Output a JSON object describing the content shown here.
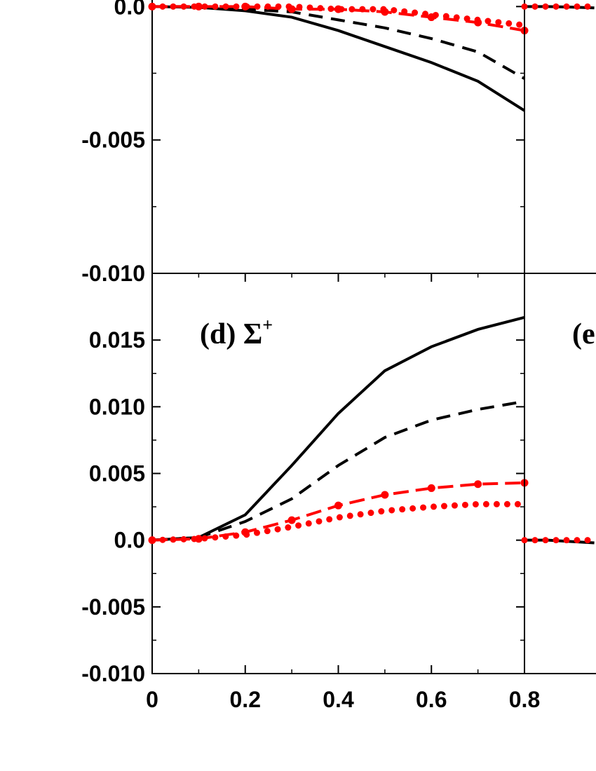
{
  "chart_data": [
    {
      "type": "line",
      "x": [
        0,
        0.1,
        0.2,
        0.3,
        0.4,
        0.5,
        0.6,
        0.7,
        0.8
      ],
      "xlim": [
        0,
        0.8
      ],
      "ylim": [
        -0.01,
        0.005
      ],
      "yticks": [
        {
          "value": -0.01,
          "label": "-0.010"
        },
        {
          "value": -0.005,
          "label": "-0.005"
        },
        {
          "value": 0,
          "label": "0.0"
        }
      ],
      "series": [
        {
          "color": "#000000",
          "style": "solid",
          "values": [
            0,
            -3e-05,
            -0.00016,
            -0.0004,
            -0.0009,
            -0.0015,
            -0.0021,
            -0.0028,
            -0.0039
          ]
        },
        {
          "color": "#000000",
          "style": "dashed",
          "values": [
            0,
            0,
            -0.0001,
            -0.0002,
            -0.0005,
            -0.0008,
            -0.0012,
            -0.0017,
            -0.0027
          ]
        },
        {
          "color": "#ff0000",
          "style": "dash-dot-circles",
          "values": [
            0,
            0,
            0,
            -0.0001,
            -0.0001,
            -0.0002,
            -0.0004,
            -0.0006,
            -0.0009
          ]
        },
        {
          "color": "#ff0000",
          "style": "dotted-circles",
          "values": [
            0,
            0,
            0,
            0,
            -0.0001,
            -0.0001,
            -0.0003,
            -0.0005,
            -0.0007
          ]
        }
      ]
    },
    {
      "type": "line",
      "x": [
        0,
        0.05,
        0.1,
        0.15
      ],
      "xlim": [
        0,
        0.8
      ],
      "ylim": [
        -0.01,
        0.005
      ],
      "series": [
        {
          "color": "#000000",
          "style": "solid",
          "values": [
            0,
            0,
            -2e-05,
            -5e-05
          ]
        },
        {
          "color": "#ff0000",
          "style": "dotted-circles",
          "values": [
            0,
            0,
            0,
            0
          ]
        }
      ]
    },
    {
      "type": "line",
      "x": [
        0,
        0.1,
        0.2,
        0.3,
        0.4,
        0.5,
        0.6,
        0.7,
        0.8
      ],
      "xlim": [
        0,
        0.8
      ],
      "ylim": [
        -0.01,
        0.02
      ],
      "panel_label": "(d) Σ",
      "panel_label_superscript": "+",
      "xticks": [
        0,
        0.2,
        0.4,
        0.6,
        0.8
      ],
      "yticks": [
        {
          "value": -0.01,
          "label": "-0.010"
        },
        {
          "value": -0.005,
          "label": "-0.005"
        },
        {
          "value": 0,
          "label": "0.0"
        },
        {
          "value": 0.005,
          "label": "0.005"
        },
        {
          "value": 0.01,
          "label": "0.010"
        },
        {
          "value": 0.015,
          "label": "0.015"
        }
      ],
      "series": [
        {
          "color": "#000000",
          "style": "solid",
          "values": [
            0,
            0.0002,
            0.0019,
            0.0056,
            0.0095,
            0.0127,
            0.0145,
            0.0158,
            0.0167
          ]
        },
        {
          "color": "#000000",
          "style": "dashed",
          "values": [
            0,
            0.0002,
            0.0014,
            0.0031,
            0.0056,
            0.0077,
            0.009,
            0.0098,
            0.0104
          ]
        },
        {
          "color": "#ff0000",
          "style": "dash-dot-circles",
          "values": [
            0,
            0.0001,
            0.0006,
            0.0015,
            0.0026,
            0.0034,
            0.0039,
            0.0042,
            0.0043
          ]
        },
        {
          "color": "#ff0000",
          "style": "dotted-circles",
          "values": [
            0,
            0.0001,
            0.0004,
            0.001,
            0.0017,
            0.0022,
            0.0025,
            0.0027,
            0.0027
          ]
        }
      ]
    },
    {
      "type": "line",
      "x": [
        0,
        0.05,
        0.1,
        0.15
      ],
      "xlim": [
        0,
        0.8
      ],
      "ylim": [
        -0.01,
        0.02
      ],
      "panel_label": "(e",
      "series": [
        {
          "color": "#000000",
          "style": "solid",
          "values": [
            0,
            0,
            -0.0001,
            -0.0002
          ]
        },
        {
          "color": "#ff0000",
          "style": "dotted-circles",
          "values": [
            0,
            0,
            0,
            0
          ]
        }
      ]
    }
  ]
}
